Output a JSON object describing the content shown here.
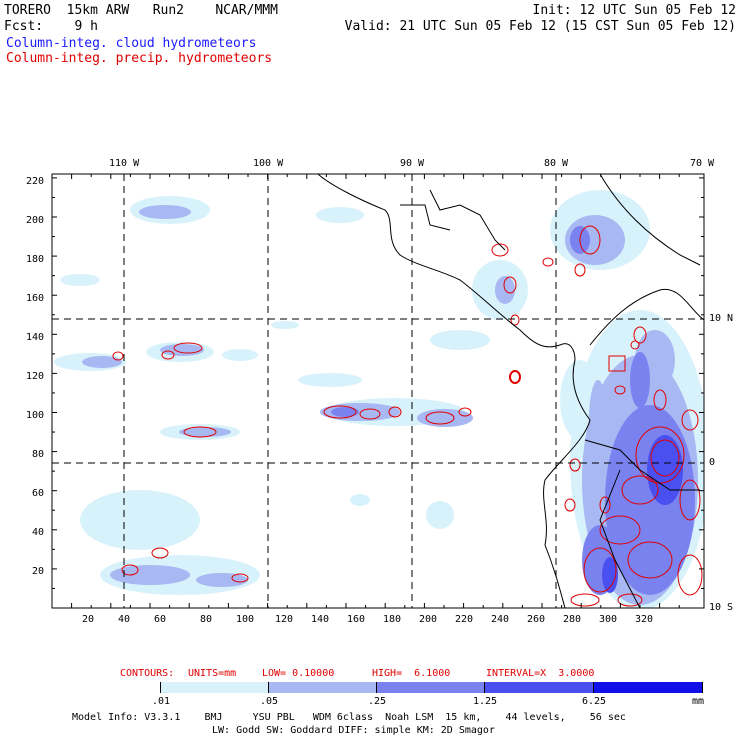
{
  "header": {
    "line1_left": "TORERO  15km ARW   Run2    NCAR/MMM",
    "line1_right": "Init: 12 UTC Sun 05 Feb 12",
    "line2_left": "Fcst:    9 h",
    "line2_right": "Valid: 21 UTC Sun 05 Feb 12 (15 CST Sun 05 Feb 12)",
    "legend_cloud": "Column-integ. cloud hydrometeors",
    "legend_precip": "Column-integ. precip. hydrometeors"
  },
  "map": {
    "lon_labels": [
      "110 W",
      "100 W",
      "90 W",
      "80 W",
      "70 W"
    ],
    "lat_labels": [
      "10 N",
      "0",
      "10 S"
    ],
    "y_ticks": [
      "220",
      "200",
      "180",
      "160",
      "140",
      "120",
      "100",
      "80",
      "60",
      "40",
      "20"
    ],
    "x_ticks": [
      "20",
      "40",
      "60",
      "80",
      "100",
      "120",
      "140",
      "160",
      "180",
      "200",
      "220",
      "240",
      "260",
      "280",
      "300",
      "320"
    ]
  },
  "contours_info": {
    "label": "CONTOURS:",
    "units": "UNITS=mm",
    "low": "LOW= 0.10000",
    "high": "HIGH=  6.1000",
    "interval": "INTERVAL=X  3.0000"
  },
  "colorbar": {
    "colors": [
      "#ffffff",
      "#d8f2fb",
      "#a8b8f2",
      "#7a82f0",
      "#4a50f0",
      "#1010e8"
    ],
    "labels": [
      ".01",
      ".05",
      ".25",
      "1.25",
      "6.25"
    ],
    "units": "mm"
  },
  "footer": {
    "line1": "Model Info: V3.3.1    BMJ     YSU PBL   WDM 6class  Noah LSM  15 km,    44 levels,    56 sec",
    "line2": "LW: Godd SW: Goddard DIFF: simple KM: 2D Smagor"
  }
}
